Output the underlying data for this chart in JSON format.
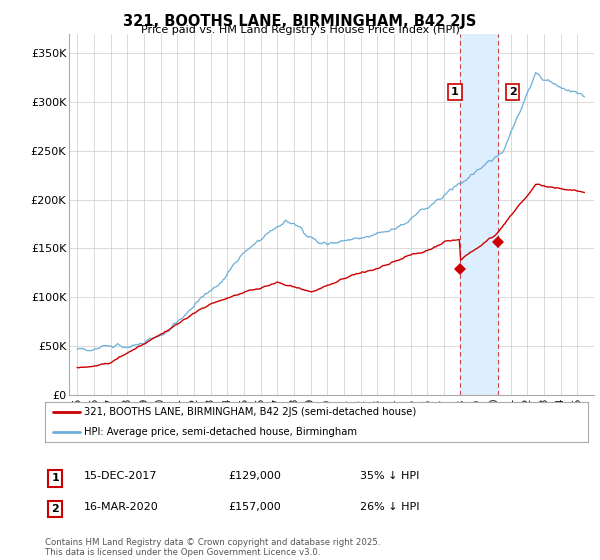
{
  "title": "321, BOOTHS LANE, BIRMINGHAM, B42 2JS",
  "subtitle": "Price paid vs. HM Land Registry's House Price Index (HPI)",
  "hpi_color": "#6baed6",
  "price_color": "#cc0000",
  "ylim": [
    0,
    370000
  ],
  "yticks": [
    0,
    50000,
    100000,
    150000,
    200000,
    250000,
    300000,
    350000
  ],
  "ytick_labels": [
    "£0",
    "£50K",
    "£100K",
    "£150K",
    "£200K",
    "£250K",
    "£300K",
    "£350K"
  ],
  "legend_label_red": "321, BOOTHS LANE, BIRMINGHAM, B42 2JS (semi-detached house)",
  "legend_label_blue": "HPI: Average price, semi-detached house, Birmingham",
  "sale1_date": "15-DEC-2017",
  "sale1_price": "£129,000",
  "sale1_pct": "35% ↓ HPI",
  "sale2_date": "16-MAR-2020",
  "sale2_price": "£157,000",
  "sale2_pct": "26% ↓ HPI",
  "footer": "Contains HM Land Registry data © Crown copyright and database right 2025.\nThis data is licensed under the Open Government Licence v3.0.",
  "background_color": "#ffffff",
  "grid_color": "#cccccc",
  "highlight_color": "#ddeeff",
  "sale1_x": 2017.96,
  "sale2_x": 2020.21,
  "sale1_y": 129000,
  "sale2_y": 157000,
  "xmin": 1994.5,
  "xmax": 2026.0
}
